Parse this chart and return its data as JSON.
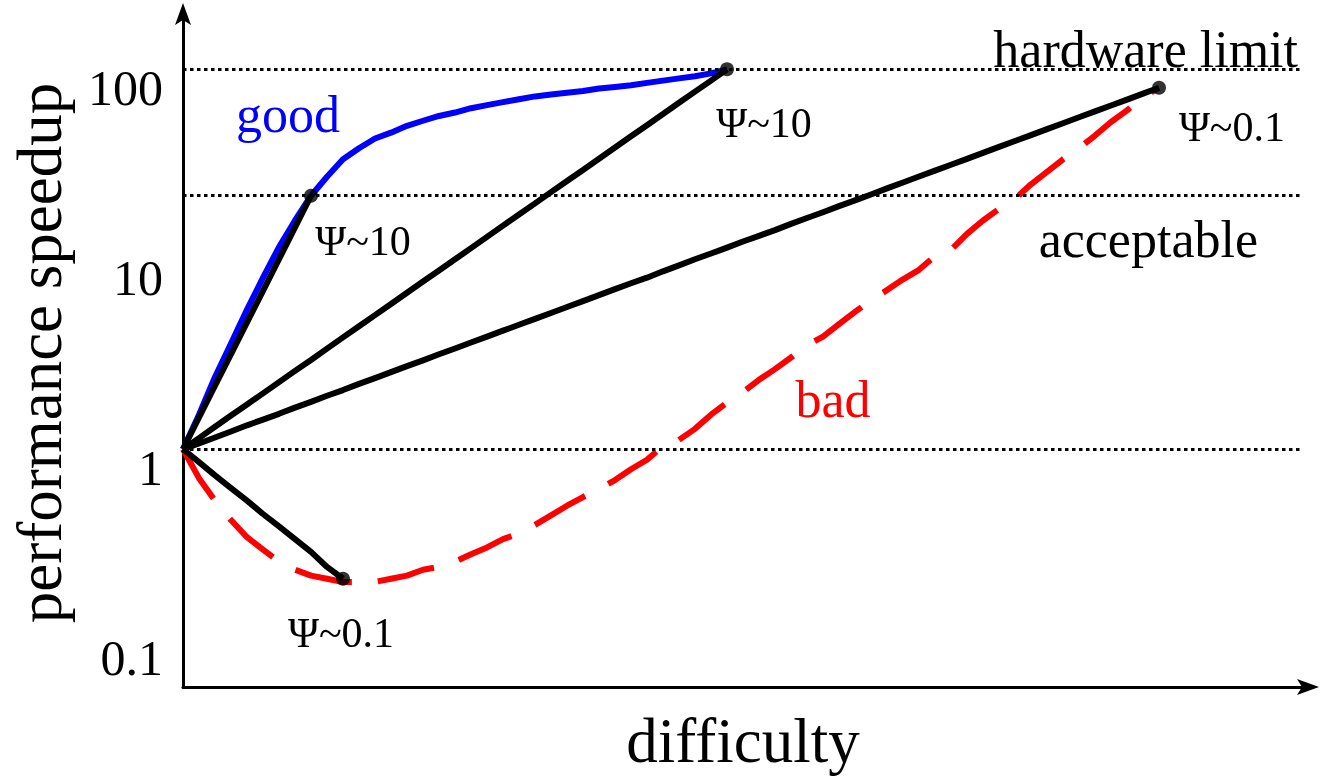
{
  "chart_data": {
    "type": "line",
    "xlabel": "difficulty",
    "ylabel": "performance speedup",
    "categories": [
      null,
      null,
      null,
      null,
      null,
      null,
      null,
      null,
      null,
      null,
      null,
      null,
      null,
      null,
      null,
      null,
      null,
      null,
      null,
      null,
      null,
      null,
      null,
      null,
      null,
      null,
      null,
      null,
      null,
      null,
      null,
      null,
      null,
      null,
      null,
      null,
      null,
      null,
      null,
      null,
      null,
      null,
      null,
      null,
      null,
      null,
      null,
      null,
      null,
      null,
      null,
      null,
      null,
      null,
      null,
      null,
      null,
      null,
      null,
      null,
      null,
      null,
      null,
      null,
      null,
      null,
      null,
      null,
      null,
      null,
      null
    ],
    "log": "y",
    "ylim": [
      0.07,
      230
    ],
    "yticks": [
      0.1,
      1,
      10,
      100
    ],
    "tick_labels": "y",
    "marker": "none",
    "line_style": "solid",
    "series": [
      {
        "name": "good",
        "color": "#0000ff",
        "values": [
          1.25,
          1.9,
          3,
          4.5,
          6.8,
          10,
          14.5,
          20,
          27,
          34,
          42,
          48,
          54,
          58,
          63,
          67,
          71,
          74,
          78,
          81,
          84,
          87,
          90,
          92,
          94,
          96,
          99,
          101,
          103,
          106,
          109,
          112,
          115,
          119,
          125,
          null,
          null,
          null,
          null,
          null,
          null,
          null,
          null,
          null,
          null,
          null,
          null,
          null,
          null,
          null,
          null,
          null,
          null,
          null,
          null,
          null,
          null,
          null,
          null,
          null,
          null,
          null,
          null,
          null,
          null,
          null,
          null,
          null,
          null,
          null,
          null
        ]
      },
      {
        "name": "bad",
        "color": "#ff0000",
        "line_style": "dashed",
        "values": [
          1.25,
          0.88,
          0.67,
          0.53,
          0.43,
          0.37,
          0.32,
          0.29,
          0.27,
          0.26,
          0.25,
          0.25,
          0.25,
          0.26,
          0.27,
          0.29,
          0.3,
          0.32,
          0.35,
          0.38,
          0.42,
          0.45,
          0.5,
          0.56,
          0.63,
          0.7,
          0.77,
          0.86,
          0.98,
          1.1,
          1.3,
          1.4,
          1.6,
          1.9,
          2.2,
          2.5,
          2.9,
          3.3,
          3.8,
          4.4,
          4.9,
          5.7,
          6.6,
          7.6,
          8.6,
          9.8,
          11,
          13,
          14,
          17,
          20,
          23,
          26,
          31,
          36,
          42,
          48,
          56,
          66,
          76,
          89,
          100,
          null,
          null,
          null,
          null,
          null,
          null,
          null,
          null,
          null
        ]
      },
      {
        "color": "#000000",
        "values": [
          1.25,
          1.84,
          2.7,
          3.96,
          5.81,
          8.53,
          12.5,
          18.4,
          27,
          null,
          null,
          null,
          null,
          null,
          null,
          null,
          null,
          null,
          null,
          null,
          null,
          null,
          null,
          null,
          null,
          null,
          null,
          null,
          null,
          null,
          null,
          null,
          null,
          null,
          null,
          null,
          null,
          null,
          null,
          null,
          null,
          null,
          null,
          null,
          null,
          null,
          null,
          null,
          null,
          null,
          null,
          null,
          null,
          null,
          null,
          null,
          null,
          null,
          null,
          null,
          null,
          null,
          null,
          null,
          null,
          null,
          null,
          null,
          null,
          null,
          null
        ]
      },
      {
        "color": "#000000",
        "values": [
          1.25,
          1.43,
          1.64,
          1.88,
          2.15,
          2.46,
          2.82,
          3.23,
          3.69,
          4.23,
          4.85,
          5.55,
          6.35,
          7.27,
          8.33,
          9.54,
          10.9,
          12.5,
          14.3,
          16.4,
          18.8,
          21.5,
          24.6,
          28.2,
          32.3,
          36.9,
          42.3,
          48.4,
          55.5,
          63.5,
          72.7,
          83.3,
          95.4,
          109,
          125,
          null,
          null,
          null,
          null,
          null,
          null,
          null,
          null,
          null,
          null,
          null,
          null,
          null,
          null,
          null,
          null,
          null,
          null,
          null,
          null,
          null,
          null,
          null,
          null,
          null,
          null,
          null,
          null,
          null,
          null,
          null,
          null,
          null,
          null,
          null,
          null
        ]
      },
      {
        "color": "#000000",
        "values": [
          1.25,
          1.34,
          1.44,
          1.55,
          1.67,
          1.79,
          1.92,
          2.07,
          2.22,
          2.39,
          2.56,
          2.76,
          2.96,
          3.18,
          3.42,
          3.67,
          3.95,
          4.24,
          4.56,
          4.89,
          5.26,
          5.65,
          6.07,
          6.52,
          7.01,
          7.53,
          8.09,
          8.7,
          9.34,
          10,
          10.8,
          11.6,
          12.5,
          13.4,
          14.4,
          15.5,
          16.6,
          17.8,
          19.2,
          20.6,
          22.1,
          23.8,
          25.5,
          27.4,
          29.5,
          31.7,
          34.1,
          36.6,
          39.3,
          42.2,
          45.4,
          48.8,
          52.4,
          56.3,
          60.5,
          65,
          69.9,
          75.1,
          80.6,
          86.6,
          93.1,
          100,
          null,
          null,
          null,
          null,
          null,
          null,
          null,
          null,
          null
        ]
      },
      {
        "color": "#000000",
        "values": [
          1.25,
          1.07,
          0.91,
          0.78,
          0.67,
          0.57,
          0.49,
          0.42,
          0.36,
          0.3,
          0.26,
          null,
          null,
          null,
          null,
          null,
          null,
          null,
          null,
          null,
          null,
          null,
          null,
          null,
          null,
          null,
          null,
          null,
          null,
          null,
          null,
          null,
          null,
          null,
          null,
          null,
          null,
          null,
          null,
          null,
          null,
          null,
          null,
          null,
          null,
          null,
          null,
          null,
          null,
          null,
          null,
          null,
          null,
          null,
          null,
          null,
          null,
          null,
          null,
          null,
          null,
          null,
          null,
          null,
          null,
          null,
          null,
          null,
          null,
          null,
          null
        ]
      },
      {
        "type": "scatter",
        "color": "#000000",
        "marker": "circle",
        "values": [
          null,
          null,
          null,
          null,
          null,
          null,
          null,
          null,
          27,
          null,
          0.26,
          null,
          null,
          null,
          null,
          null,
          null,
          null,
          null,
          null,
          null,
          null,
          null,
          null,
          null,
          null,
          null,
          null,
          null,
          null,
          null,
          null,
          null,
          null,
          125,
          null,
          null,
          null,
          null,
          null,
          null,
          null,
          null,
          null,
          null,
          null,
          null,
          null,
          null,
          null,
          null,
          null,
          null,
          null,
          null,
          null,
          null,
          null,
          null,
          null,
          null,
          100,
          null,
          null,
          null,
          null,
          null,
          null,
          null,
          null,
          null
        ]
      }
    ],
    "annotations": [
      {
        "text": "Ψ~10",
        "y": 27
      },
      {
        "text": "Ψ~10",
        "y": 125
      },
      "Ψ~0.1",
      {
        "text": "Ψ~0.1",
        "y": 0.26
      }
    ],
    "ref_lines": [
      {
        "axis": "y",
        "value": 125,
        "label": "hardware limit",
        "color": "#000000",
        "line_style": "dotted"
      },
      {
        "axis": "y",
        "value": 27,
        "label": "acceptable",
        "color": "#000000",
        "line_style": "dotted"
      },
      {
        "axis": "y",
        "value": 1.25,
        "color": "#000000",
        "line_style": "dotted"
      }
    ]
  }
}
